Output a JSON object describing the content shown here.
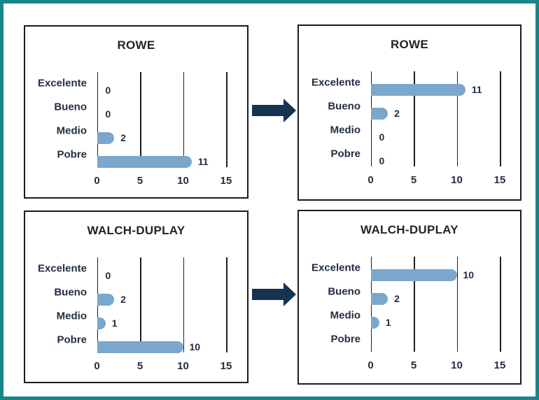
{
  "canvas": {
    "frame_color": "#19858b",
    "background": "#ffffff"
  },
  "arrows": [
    {
      "name": "top-arrow",
      "direction": "right",
      "color": "#163350"
    },
    {
      "name": "bottom-arrow",
      "direction": "right",
      "color": "#163350"
    }
  ],
  "colors": {
    "panel_border": "#1b1b1b",
    "gridline": "#1f1f1f",
    "label_text": "#232d42",
    "title_text": "#20242c"
  },
  "chart_data": [
    {
      "type": "bar",
      "orientation": "horizontal",
      "title": "ROWE",
      "categories": [
        "Excelente",
        "Bueno",
        "Medio",
        "Pobre"
      ],
      "values": [
        0,
        0,
        2,
        11
      ],
      "value_labels": [
        "0",
        "0",
        "2",
        "11"
      ],
      "x_ticks": [
        "0",
        "5",
        "10",
        "15"
      ],
      "xlim": [
        0,
        15
      ],
      "grid": true,
      "legend": false,
      "bar_color": "#7aa7cb"
    },
    {
      "type": "bar",
      "orientation": "horizontal",
      "title": "ROWE",
      "categories": [
        "Excelente",
        "Bueno",
        "Medio",
        "Pobre"
      ],
      "values": [
        11,
        2,
        0,
        0
      ],
      "value_labels": [
        "11",
        "2",
        "0",
        "0"
      ],
      "x_ticks": [
        "0",
        "5",
        "10",
        "15"
      ],
      "xlim": [
        0,
        15
      ],
      "grid": true,
      "legend": false,
      "bar_color": "#7aa7cb"
    },
    {
      "type": "bar",
      "orientation": "horizontal",
      "title": "WALCH-DUPLAY",
      "categories": [
        "Excelente",
        "Bueno",
        "Medio",
        "Pobre"
      ],
      "values": [
        0,
        2,
        1,
        10
      ],
      "value_labels": [
        "0",
        "2",
        "1",
        "10"
      ],
      "x_ticks": [
        "0",
        "5",
        "10",
        "15"
      ],
      "xlim": [
        0,
        15
      ],
      "grid": true,
      "legend": false,
      "bar_color": "#7aa7cb"
    },
    {
      "type": "bar",
      "orientation": "horizontal",
      "title": "WALCH-DUPLAY",
      "categories": [
        "Excelente",
        "Bueno",
        "Medio",
        "Pobre"
      ],
      "values": [
        10,
        2,
        1,
        0
      ],
      "value_labels": [
        "10",
        "2",
        "1",
        ""
      ],
      "x_ticks": [
        "0",
        "5",
        "10",
        "15"
      ],
      "xlim": [
        0,
        15
      ],
      "grid": true,
      "legend": false,
      "bar_color": "#7aa7cb"
    }
  ]
}
